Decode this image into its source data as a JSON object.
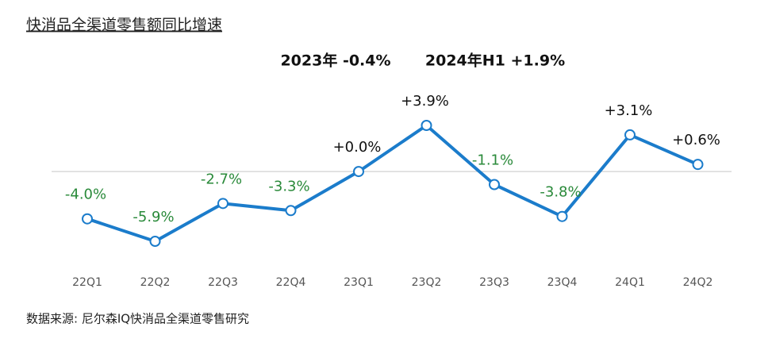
{
  "chart_data": {
    "type": "line",
    "title": "快消品全渠道零售额同比增速",
    "annotations": [
      "2023年 -0.4%",
      "2024年H1 +1.9%"
    ],
    "categories": [
      "22Q1",
      "22Q2",
      "22Q3",
      "22Q4",
      "23Q1",
      "23Q2",
      "23Q3",
      "23Q4",
      "24Q1",
      "24Q2"
    ],
    "values": [
      -4.0,
      -5.9,
      -2.7,
      -3.3,
      0.0,
      3.9,
      -1.1,
      -3.8,
      3.1,
      0.6
    ],
    "value_labels": [
      "-4.0%",
      "-5.9%",
      "-2.7%",
      "-3.3%",
      "+0.0%",
      "+3.9%",
      "-1.1%",
      "-3.8%",
      "+3.1%",
      "+0.6%"
    ],
    "color": "#1b7ccb",
    "positive_label_color": "#111111",
    "negative_label_color": "#2a8a3a",
    "source": "数据来源: 尼尔森IQ快消品全渠道零售研究"
  }
}
